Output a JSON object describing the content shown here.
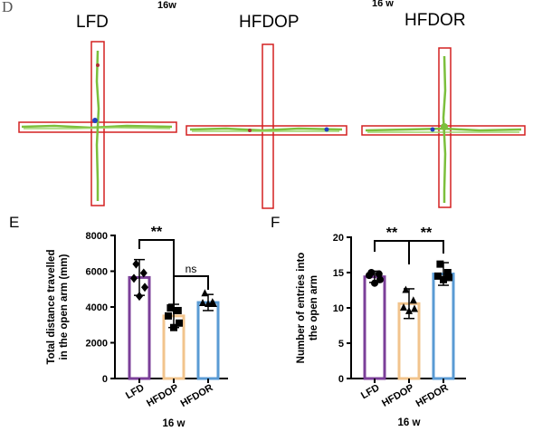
{
  "panel_d": {
    "letter": "D",
    "duration_labels": [
      "16w",
      "16 w"
    ],
    "mazes": [
      {
        "title": "LFD"
      },
      {
        "title": "HFDOP"
      },
      {
        "title": "HFDOR"
      }
    ],
    "colors": {
      "arm_outline": "#d42020",
      "track": "#7cbf3c",
      "marker_blue": "#2040c0",
      "marker_red": "#b03030"
    }
  },
  "chart_data": [
    {
      "type": "bar",
      "panel": "E",
      "categories": [
        "LFD",
        "HFDOP",
        "HFDOR"
      ],
      "values": [
        5650,
        3500,
        4250
      ],
      "errors": [
        1000,
        650,
        450
      ],
      "points": [
        [
          6400,
          5900,
          5600,
          5100,
          4600
        ],
        [
          3950,
          3800,
          3500,
          3100,
          2850
        ],
        [
          4750,
          4250,
          4200,
          4150,
          4150
        ]
      ],
      "marker_shapes": [
        "diamond",
        "square",
        "triangle"
      ],
      "colors": [
        "#7b3f99",
        "#f2c48d",
        "#5a9bd4"
      ],
      "ylabel": "Total distance travelled\nin the open arm (mm)",
      "xlabel": "16 w",
      "ylim": [
        0,
        8000
      ],
      "yticks": [
        0,
        2000,
        4000,
        6000,
        8000
      ],
      "grid": false,
      "significance": [
        {
          "from": 0,
          "to": 1,
          "label": "**"
        },
        {
          "from": 1,
          "to": 2,
          "label": "ns"
        }
      ]
    },
    {
      "type": "bar",
      "panel": "F",
      "categories": [
        "LFD",
        "HFDOP",
        "HFDOR"
      ],
      "values": [
        14.4,
        10.6,
        14.8
      ],
      "errors": [
        0.8,
        2.1,
        1.6
      ],
      "points": [
        [
          15,
          14.8,
          14.6,
          14,
          13.5
        ],
        [
          12.5,
          11,
          10,
          9.8,
          9.5
        ],
        [
          16.2,
          15,
          14.5,
          14.3,
          14
        ]
      ],
      "marker_shapes": [
        "circle",
        "triangle",
        "square"
      ],
      "colors": [
        "#7b3f99",
        "#f2c48d",
        "#5a9bd4"
      ],
      "ylabel": "Number of entries into\nthe open arm",
      "xlabel": "16 w",
      "ylim": [
        0,
        20
      ],
      "yticks": [
        0,
        5,
        10,
        15,
        20
      ],
      "grid": false,
      "significance": [
        {
          "from": 0,
          "to": 1,
          "label": "**"
        },
        {
          "from": 1,
          "to": 2,
          "label": "**"
        }
      ]
    }
  ]
}
